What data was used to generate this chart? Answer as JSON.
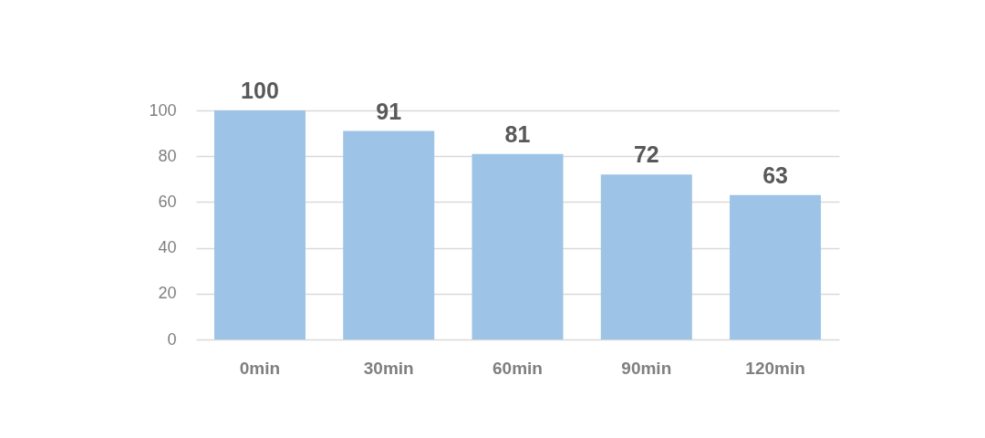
{
  "chart_data": {
    "type": "bar",
    "categories": [
      "0min",
      "30min",
      "60min",
      "90min",
      "120min"
    ],
    "values": [
      100,
      91,
      81,
      72,
      63
    ],
    "color": "#9dc3e6",
    "ylim": [
      0,
      100
    ],
    "yticks": [
      0,
      20,
      40,
      60,
      80,
      100
    ],
    "grid": "y",
    "data_labels": true
  }
}
